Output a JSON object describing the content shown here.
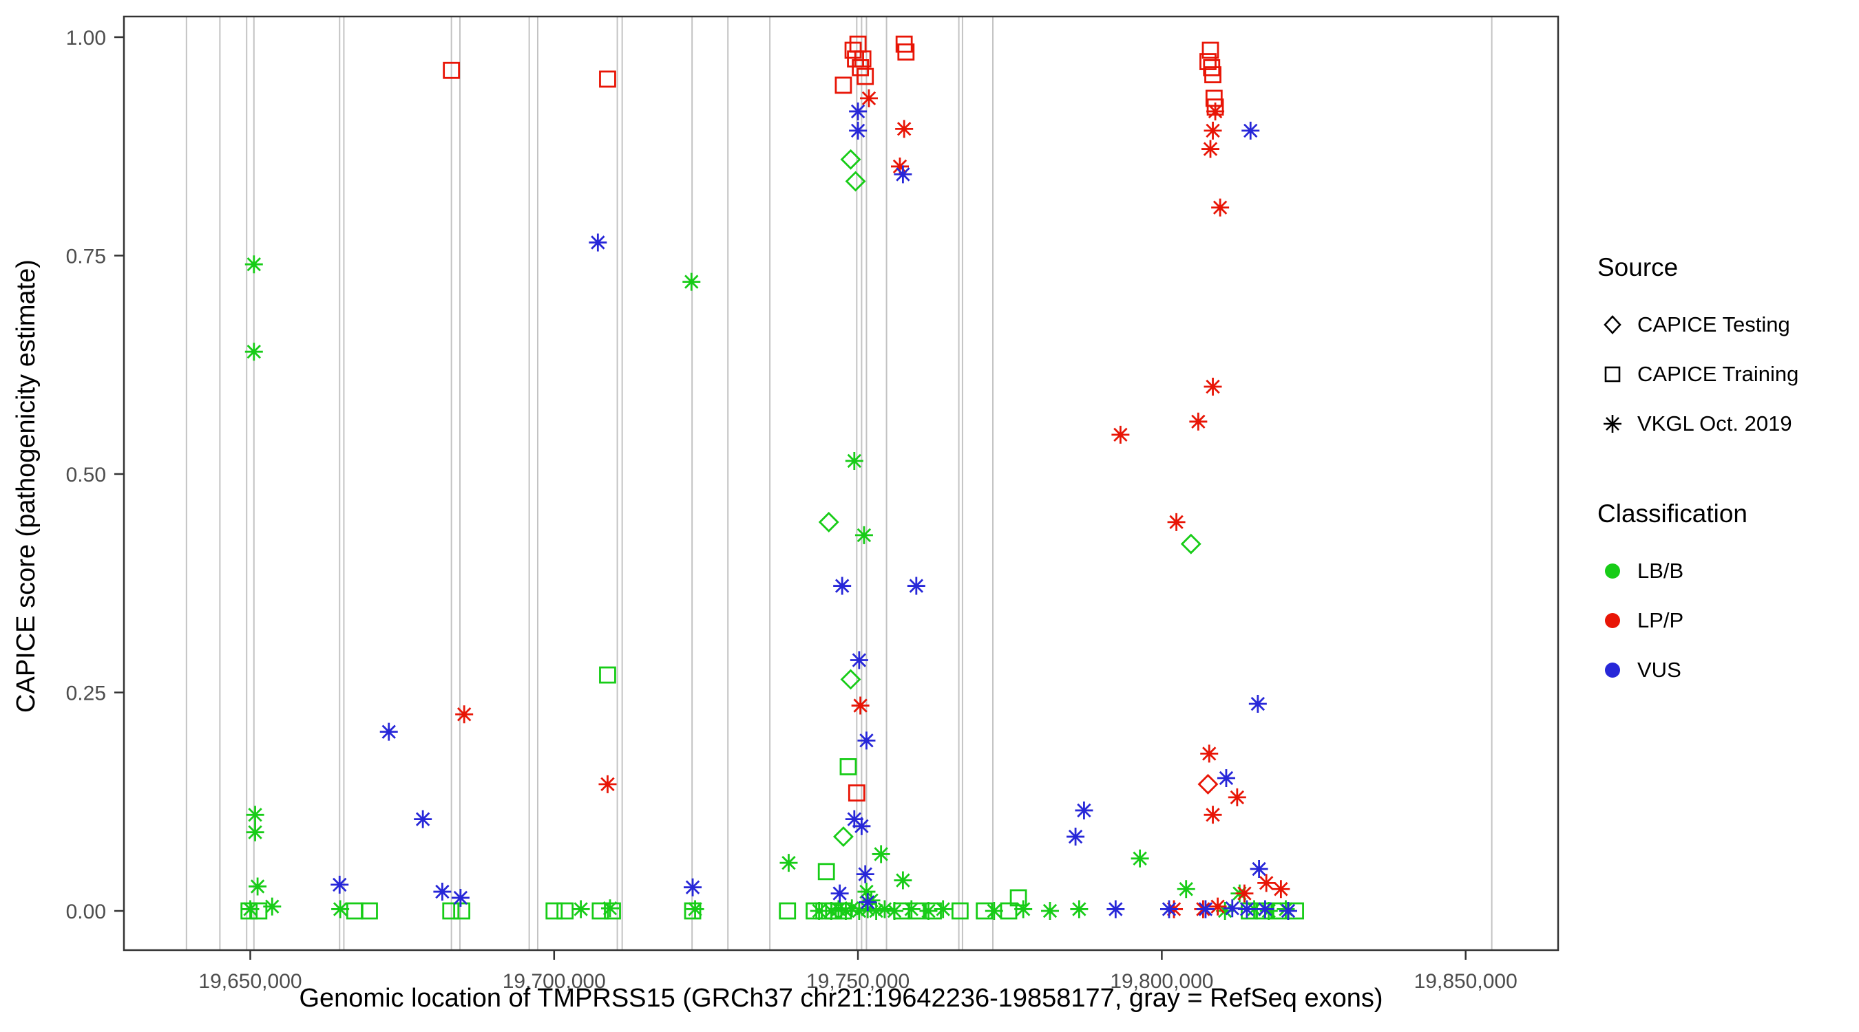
{
  "figure": {
    "background": "#ffffff",
    "panel_border_color": "#333333",
    "exon_line_color": "#c3c3c3",
    "tick_color": "#333333"
  },
  "axes": {
    "x_label": "Genomic location of TMPRSS15 (GRCh37 chr21:19642236-19858177, gray = RefSeq exons)",
    "y_label": "CAPICE score (pathogenicity estimate)",
    "x_ticks": [
      {
        "value": 19650000,
        "label": "19,650,000"
      },
      {
        "value": 19700000,
        "label": "19,700,000"
      },
      {
        "value": 19750000,
        "label": "19,750,000"
      },
      {
        "value": 19800000,
        "label": "19,800,000"
      },
      {
        "value": 19850000,
        "label": "19,850,000"
      }
    ],
    "y_ticks": [
      {
        "value": 0.0,
        "label": "0.00"
      },
      {
        "value": 0.25,
        "label": "0.25"
      },
      {
        "value": 0.5,
        "label": "0.50"
      },
      {
        "value": 0.75,
        "label": "0.75"
      },
      {
        "value": 1.0,
        "label": "1.00"
      }
    ]
  },
  "legend": {
    "source_title": "Source",
    "source_items": [
      {
        "shape": "diamond",
        "label": "CAPICE Testing"
      },
      {
        "shape": "square",
        "label": "CAPICE Training"
      },
      {
        "shape": "asterisk",
        "label": "VKGL Oct. 2019"
      }
    ],
    "class_title": "Classification",
    "class_items": [
      {
        "color": "#17cc17",
        "label": "LB/B"
      },
      {
        "color": "#e81506",
        "label": "LP/P"
      },
      {
        "color": "#2727d8",
        "label": "VUS"
      }
    ]
  },
  "chart_data": {
    "type": "scatter",
    "title": "",
    "xlabel": "Genomic location of TMPRSS15 (GRCh37 chr21:19642236-19858177, gray = RefSeq exons)",
    "ylabel": "CAPICE score (pathogenicity estimate)",
    "xlim": [
      19630000,
      19868000
    ],
    "ylim": [
      0.0,
      1.0
    ],
    "grid": false,
    "legend_position": "right",
    "exons_x": [
      19639500,
      19645000,
      19649400,
      19650600,
      19664700,
      19665400,
      19683100,
      19684500,
      19695900,
      19697300,
      19710400,
      19711200,
      19722700,
      19728600,
      19735500,
      19749800,
      19750600,
      19751400,
      19754700,
      19766600,
      19767200,
      19772200,
      19854300
    ],
    "series": [
      {
        "name": "CAPICE Testing LB/B",
        "source": "CAPICE Testing",
        "classification": "LB/B",
        "shape": "diamond",
        "color": "#17cc17",
        "points": [
          [
            19748800,
            0.86
          ],
          [
            19749600,
            0.835
          ],
          [
            19745200,
            0.445
          ],
          [
            19748800,
            0.265
          ],
          [
            19747600,
            0.085
          ],
          [
            19804800,
            0.42
          ]
        ]
      },
      {
        "name": "CAPICE Testing LP/P",
        "source": "CAPICE Testing",
        "classification": "LP/P",
        "shape": "diamond",
        "color": "#e81506",
        "points": [
          [
            19807600,
            0.145
          ]
        ]
      },
      {
        "name": "CAPICE Training LB/B",
        "source": "CAPICE Training",
        "classification": "LB/B",
        "shape": "square",
        "color": "#17cc17",
        "points": [
          [
            19708800,
            0.27
          ],
          [
            19748400,
            0.165
          ],
          [
            19744800,
            0.045
          ],
          [
            19776400,
            0.015
          ],
          [
            19649800,
            0.0
          ],
          [
            19651400,
            0.0
          ],
          [
            19667200,
            0.0
          ],
          [
            19669600,
            0.0
          ],
          [
            19683000,
            0.0
          ],
          [
            19684800,
            0.0
          ],
          [
            19700000,
            0.0
          ],
          [
            19701800,
            0.0
          ],
          [
            19707600,
            0.0
          ],
          [
            19709600,
            0.0
          ],
          [
            19722800,
            0.0
          ],
          [
            19738400,
            0.0
          ],
          [
            19742800,
            0.0
          ],
          [
            19744400,
            0.0
          ],
          [
            19746000,
            0.0
          ],
          [
            19747600,
            0.0
          ],
          [
            19757200,
            0.0
          ],
          [
            19759600,
            0.0
          ],
          [
            19762400,
            0.0
          ],
          [
            19766800,
            0.0
          ],
          [
            19770800,
            0.0
          ],
          [
            19774800,
            0.0
          ],
          [
            19814400,
            0.0
          ],
          [
            19816800,
            0.0
          ],
          [
            19819600,
            0.0
          ],
          [
            19822000,
            0.0
          ]
        ]
      },
      {
        "name": "CAPICE Training LP/P",
        "source": "CAPICE Training",
        "classification": "LP/P",
        "shape": "square",
        "color": "#e81506",
        "points": [
          [
            19683100,
            0.962
          ],
          [
            19708800,
            0.952
          ],
          [
            19747600,
            0.945
          ],
          [
            19749200,
            0.985
          ],
          [
            19749600,
            0.975
          ],
          [
            19750000,
            0.992
          ],
          [
            19750400,
            0.965
          ],
          [
            19750800,
            0.975
          ],
          [
            19751200,
            0.955
          ],
          [
            19757600,
            0.992
          ],
          [
            19757900,
            0.983
          ],
          [
            19749800,
            0.135
          ],
          [
            19807600,
            0.972
          ],
          [
            19808000,
            0.985
          ],
          [
            19808200,
            0.965
          ],
          [
            19808400,
            0.957
          ],
          [
            19808600,
            0.93
          ],
          [
            19808800,
            0.92
          ]
        ]
      },
      {
        "name": "VKGL LB/B",
        "source": "VKGL Oct. 2019",
        "classification": "LB/B",
        "shape": "asterisk",
        "color": "#17cc17",
        "points": [
          [
            19650600,
            0.74
          ],
          [
            19650600,
            0.64
          ],
          [
            19650800,
            0.11
          ],
          [
            19650800,
            0.09
          ],
          [
            19651200,
            0.028
          ],
          [
            19653600,
            0.005
          ],
          [
            19722600,
            0.72
          ],
          [
            19738600,
            0.055
          ],
          [
            19749400,
            0.515
          ],
          [
            19751000,
            0.43
          ],
          [
            19753800,
            0.065
          ],
          [
            19757400,
            0.035
          ],
          [
            19751400,
            0.022
          ],
          [
            19752200,
            0.012
          ],
          [
            19796400,
            0.06
          ],
          [
            19804000,
            0.025
          ],
          [
            19812800,
            0.02
          ],
          [
            19650000,
            0.002
          ],
          [
            19664800,
            0.002
          ],
          [
            19704400,
            0.002
          ],
          [
            19709200,
            0.003
          ],
          [
            19723200,
            0.002
          ],
          [
            19743600,
            0.0
          ],
          [
            19745600,
            0.0
          ],
          [
            19746800,
            0.002
          ],
          [
            19748000,
            0.0
          ],
          [
            19749000,
            0.003
          ],
          [
            19750200,
            0.0
          ],
          [
            19751600,
            0.002
          ],
          [
            19753000,
            0.0
          ],
          [
            19754400,
            0.002
          ],
          [
            19756000,
            0.0
          ],
          [
            19758800,
            0.002
          ],
          [
            19761600,
            0.0
          ],
          [
            19764000,
            0.002
          ],
          [
            19772400,
            0.0
          ],
          [
            19777200,
            0.002
          ],
          [
            19781600,
            0.0
          ],
          [
            19786400,
            0.002
          ],
          [
            19810400,
            0.0
          ],
          [
            19815200,
            0.002
          ],
          [
            19817600,
            0.0
          ],
          [
            19820400,
            0.002
          ]
        ]
      },
      {
        "name": "VKGL LP/P",
        "source": "VKGL Oct. 2019",
        "classification": "LP/P",
        "shape": "asterisk",
        "color": "#e81506",
        "points": [
          [
            19685200,
            0.225
          ],
          [
            19708800,
            0.145
          ],
          [
            19750400,
            0.235
          ],
          [
            19751800,
            0.93
          ],
          [
            19757600,
            0.895
          ],
          [
            19756900,
            0.852
          ],
          [
            19793200,
            0.545
          ],
          [
            19802400,
            0.445
          ],
          [
            19806000,
            0.56
          ],
          [
            19808400,
            0.6
          ],
          [
            19808800,
            0.915
          ],
          [
            19808400,
            0.893
          ],
          [
            19808000,
            0.872
          ],
          [
            19809600,
            0.805
          ],
          [
            19807800,
            0.18
          ],
          [
            19808400,
            0.11
          ],
          [
            19812400,
            0.13
          ],
          [
            19809200,
            0.005
          ],
          [
            19813600,
            0.02
          ],
          [
            19817200,
            0.032
          ],
          [
            19819600,
            0.025
          ],
          [
            19806800,
            0.002
          ],
          [
            19802000,
            0.002
          ]
        ]
      },
      {
        "name": "VKGL VUS",
        "source": "VKGL Oct. 2019",
        "classification": "VUS",
        "shape": "asterisk",
        "color": "#2727d8",
        "points": [
          [
            19672800,
            0.205
          ],
          [
            19678400,
            0.105
          ],
          [
            19681600,
            0.022
          ],
          [
            19684600,
            0.015
          ],
          [
            19664700,
            0.03
          ],
          [
            19707200,
            0.765
          ],
          [
            19722800,
            0.027
          ],
          [
            19750000,
            0.915
          ],
          [
            19750000,
            0.893
          ],
          [
            19757400,
            0.843
          ],
          [
            19747400,
            0.372
          ],
          [
            19759600,
            0.372
          ],
          [
            19750200,
            0.287
          ],
          [
            19751400,
            0.195
          ],
          [
            19749400,
            0.105
          ],
          [
            19750600,
            0.097
          ],
          [
            19751200,
            0.042
          ],
          [
            19747000,
            0.02
          ],
          [
            19751600,
            0.01
          ],
          [
            19787200,
            0.115
          ],
          [
            19785800,
            0.085
          ],
          [
            19814600,
            0.893
          ],
          [
            19815800,
            0.237
          ],
          [
            19810600,
            0.152
          ],
          [
            19816000,
            0.048
          ],
          [
            19792400,
            0.002
          ],
          [
            19801200,
            0.002
          ],
          [
            19807200,
            0.002
          ],
          [
            19811600,
            0.003
          ],
          [
            19814000,
            0.002
          ],
          [
            19817000,
            0.002
          ],
          [
            19820800,
            0.0
          ]
        ]
      }
    ]
  }
}
